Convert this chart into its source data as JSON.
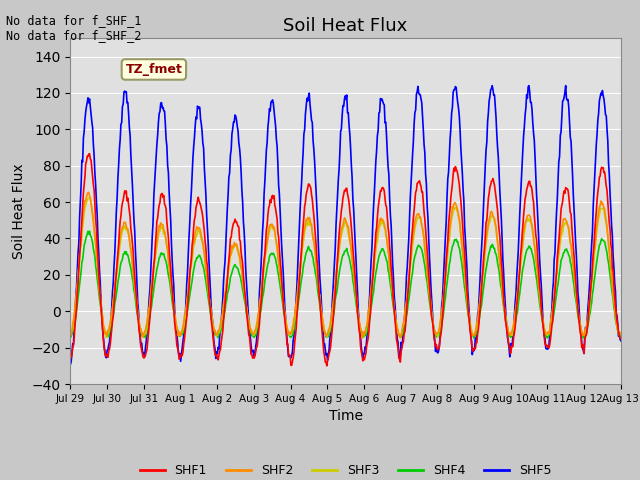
{
  "title": "Soil Heat Flux",
  "xlabel": "Time",
  "ylabel": "Soil Heat Flux",
  "ylim": [
    -40,
    150
  ],
  "yticks": [
    -40,
    -20,
    0,
    20,
    40,
    60,
    80,
    100,
    120,
    140
  ],
  "annotation_text": "No data for f_SHF_1\nNo data for f_SHF_2",
  "legend_label": "TZ_fmet",
  "series_labels": [
    "SHF1",
    "SHF2",
    "SHF3",
    "SHF4",
    "SHF5"
  ],
  "series_colors": [
    "#ff0000",
    "#ff8c00",
    "#cccc00",
    "#00cc00",
    "#0000ff"
  ],
  "n_days": 15,
  "day_labels": [
    "Jul 29",
    "Jul 30",
    "Jul 31",
    "Aug 1",
    "Aug 2",
    "Aug 3",
    "Aug 4",
    "Aug 5",
    "Aug 6",
    "Aug 7",
    "Aug 8",
    "Aug 9",
    "Aug 10",
    "Aug 11",
    "Aug 12",
    "Aug 13"
  ],
  "peak_values_shf1": [
    87,
    65,
    64,
    61,
    50,
    64,
    69,
    67,
    68,
    72,
    79,
    72,
    71,
    68,
    79
  ],
  "peak_values_shf5": [
    117,
    120,
    115,
    112,
    106,
    116,
    117,
    117,
    117,
    122,
    122,
    122,
    122,
    121,
    121
  ],
  "trough_shf1": [
    -26,
    -24,
    -26,
    -25,
    -26,
    -25,
    -30,
    -26,
    -26,
    -22,
    -21,
    -21,
    -21,
    -21,
    -15
  ],
  "trough_shf4": [
    -14,
    -14,
    -14,
    -14,
    -14,
    -14,
    -14,
    -14,
    -14,
    -14,
    -14,
    -14,
    -14,
    -14,
    -14
  ],
  "trough_shf5": [
    -26,
    -24,
    -25,
    -25,
    -24,
    -25,
    -26,
    -25,
    -25,
    -21,
    -22,
    -21,
    -21,
    -21,
    -16
  ]
}
